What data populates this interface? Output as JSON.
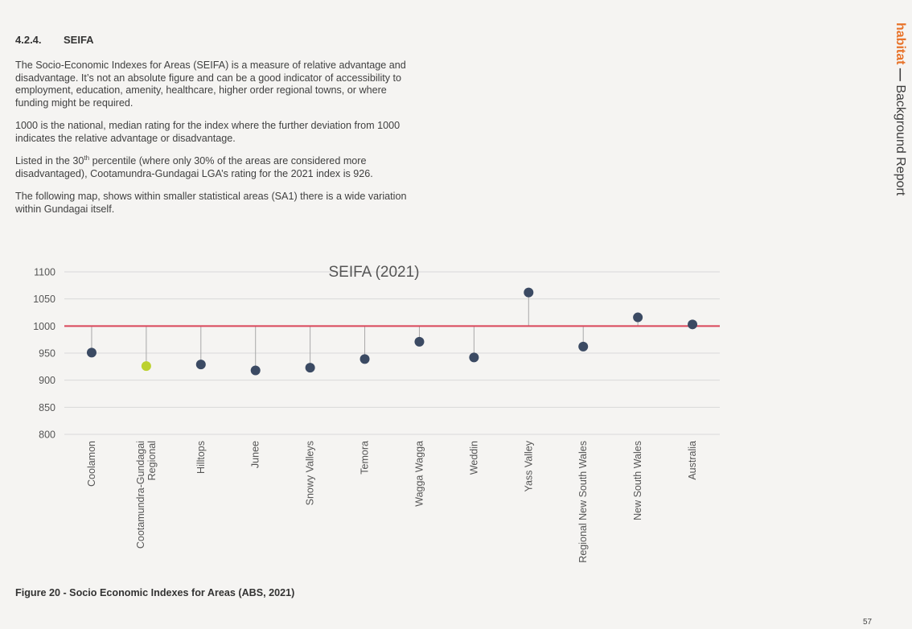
{
  "section": {
    "number": "4.2.4.",
    "title": "SEIFA"
  },
  "paragraphs": {
    "p1": "The Socio-Economic Indexes for Areas (SEIFA) is a measure of relative advantage and disadvantage. It’s not an absolute figure and can be a good indicator of accessibility to employment, education, amenity, healthcare, higher order regional towns, or where funding might be required.",
    "p2": "1000 is the national, median rating for the index where the further deviation from 1000 indicates the relative advantage or disadvantage.",
    "p3_pre": "Listed in the 30",
    "p3_sup": "th",
    "p3_post": " percentile (where only 30% of the areas are considered more disadvantaged), Cootamundra-Gundagai LGA’s rating for the 2021 index is 926.",
    "p4": "The following map, shows within smaller statistical areas (SA1) there is a wide variation within Gundagai itself."
  },
  "side_header": {
    "brand": "habitat",
    "dash": " — ",
    "title": "Background Report"
  },
  "chart_data": {
    "type": "scatter",
    "title": "SEIFA (2021)",
    "xlabel": "",
    "ylabel": "",
    "ylim": [
      800,
      1100
    ],
    "yticks": [
      800,
      850,
      900,
      950,
      1000,
      1050,
      1100
    ],
    "baseline": 1000,
    "grid": true,
    "categories": [
      [
        "Coolamon"
      ],
      [
        "Cootamundra-Gundagai",
        "Regional"
      ],
      [
        "Hilltops"
      ],
      [
        "Junee"
      ],
      [
        "Snowy Valleys"
      ],
      [
        "Temora"
      ],
      [
        "Wagga Wagga"
      ],
      [
        "Weddin"
      ],
      [
        "Yass Valley"
      ],
      [
        "Regional New South Wales"
      ],
      [
        "New South Wales"
      ],
      [
        "Australia"
      ]
    ],
    "values": [
      951,
      926,
      929,
      918,
      923,
      939,
      971,
      942,
      1062,
      962,
      1016,
      1003
    ],
    "highlight_index": 1,
    "colors": {
      "point": "#3b4a63",
      "highlight": "#bcd12e",
      "baseline": "#d9465a",
      "stem": "#a8a8a8",
      "grid": "#d9d9d9",
      "axis_text": "#555555"
    }
  },
  "caption": "Figure 20 - Socio Economic Indexes for Areas (ABS, 2021)",
  "page_number": "57"
}
